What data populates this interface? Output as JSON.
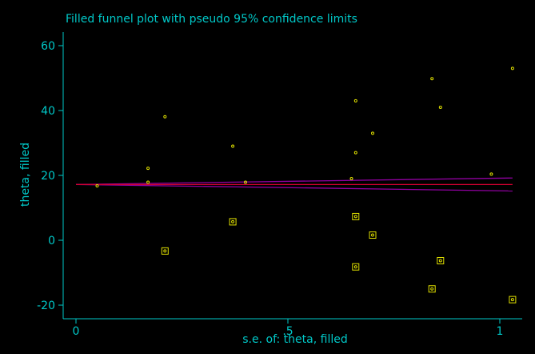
{
  "chart_data": {
    "type": "scatter",
    "title": "Filled funnel plot with pseudo 95% confidence limits",
    "xlabel": "s.e. of: theta, filled",
    "ylabel": "theta, filled",
    "xlim": [
      0,
      1.03
    ],
    "ylim": [
      -20,
      60
    ],
    "x_ticks": [
      0,
      0.5,
      1
    ],
    "x_tick_labels": [
      "0",
      ".5",
      "1"
    ],
    "y_ticks": [
      -20,
      0,
      20,
      40,
      60
    ],
    "y_tick_labels": [
      "-20",
      "0",
      "20",
      "40",
      "60"
    ],
    "grid": false,
    "background": "#000000",
    "text_color": "#00c8c8",
    "pooled_estimate": 17.2,
    "pseudo_ci_lower": [
      [
        0,
        17.2
      ],
      [
        1.03,
        15.2
      ]
    ],
    "pseudo_ci_upper": [
      [
        0,
        17.2
      ],
      [
        1.03,
        19.2
      ]
    ],
    "colors": {
      "axis": "#00c8c8",
      "points": "#e0e000",
      "pooled_line": "#d00030",
      "ci_lines": "#9000a0"
    },
    "series": [
      {
        "marker": "circle",
        "points": [
          [
            0.05,
            16.8
          ],
          [
            0.17,
            22.2
          ],
          [
            0.17,
            17.9
          ],
          [
            0.21,
            38.1
          ],
          [
            0.37,
            29.0
          ],
          [
            0.4,
            17.9
          ],
          [
            0.65,
            19.0
          ],
          [
            0.66,
            43.0
          ],
          [
            0.66,
            27.0
          ],
          [
            0.7,
            33.0
          ],
          [
            0.84,
            49.8
          ],
          [
            0.86,
            41.0
          ],
          [
            0.98,
            20.4
          ],
          [
            1.03,
            53.0
          ]
        ]
      },
      {
        "marker": "square",
        "points": [
          [
            0.21,
            -3.3
          ],
          [
            0.37,
            5.7
          ],
          [
            0.66,
            7.3
          ],
          [
            0.66,
            -8.2
          ],
          [
            0.7,
            1.6
          ],
          [
            0.84,
            -15.0
          ],
          [
            0.86,
            -6.3
          ],
          [
            1.03,
            -18.3
          ]
        ]
      }
    ]
  }
}
